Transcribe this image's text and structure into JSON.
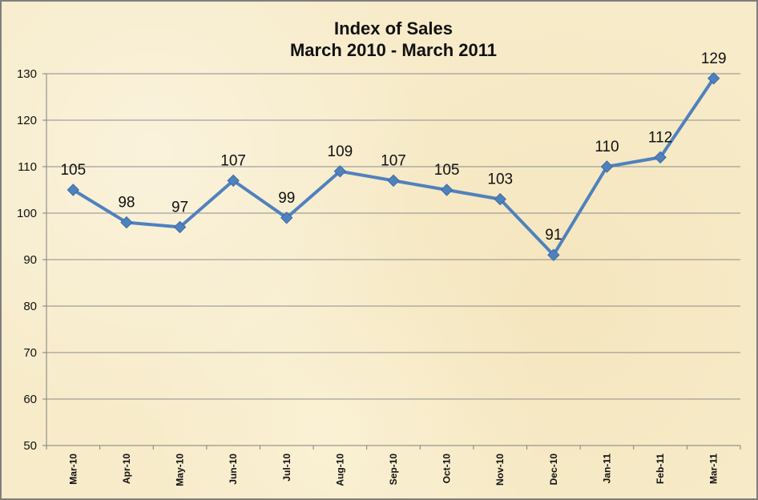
{
  "chart_data": {
    "type": "line",
    "title": "Index of Sales",
    "subtitle": "March 2010 - March 2011",
    "xlabel": "",
    "ylabel": "",
    "categories": [
      "Mar-10",
      "Apr-10",
      "May-10",
      "Jun-10",
      "Jul-10",
      "Aug-10",
      "Sep-10",
      "Oct-10",
      "Nov-10",
      "Dec-10",
      "Jan-11",
      "Feb-11",
      "Mar-11"
    ],
    "series": [
      {
        "values": [
          105,
          98,
          97,
          107,
          99,
          109,
          107,
          105,
          103,
          91,
          110,
          112,
          129
        ]
      }
    ],
    "ylim": [
      50,
      130
    ],
    "yticks": [
      50,
      60,
      70,
      80,
      90,
      100,
      110,
      120,
      130
    ],
    "grid": "horizontal",
    "data_labels": true,
    "colors": {
      "line": "#4f81bd",
      "grid": "#8c8c8c",
      "background": "#f7ebc9"
    }
  }
}
